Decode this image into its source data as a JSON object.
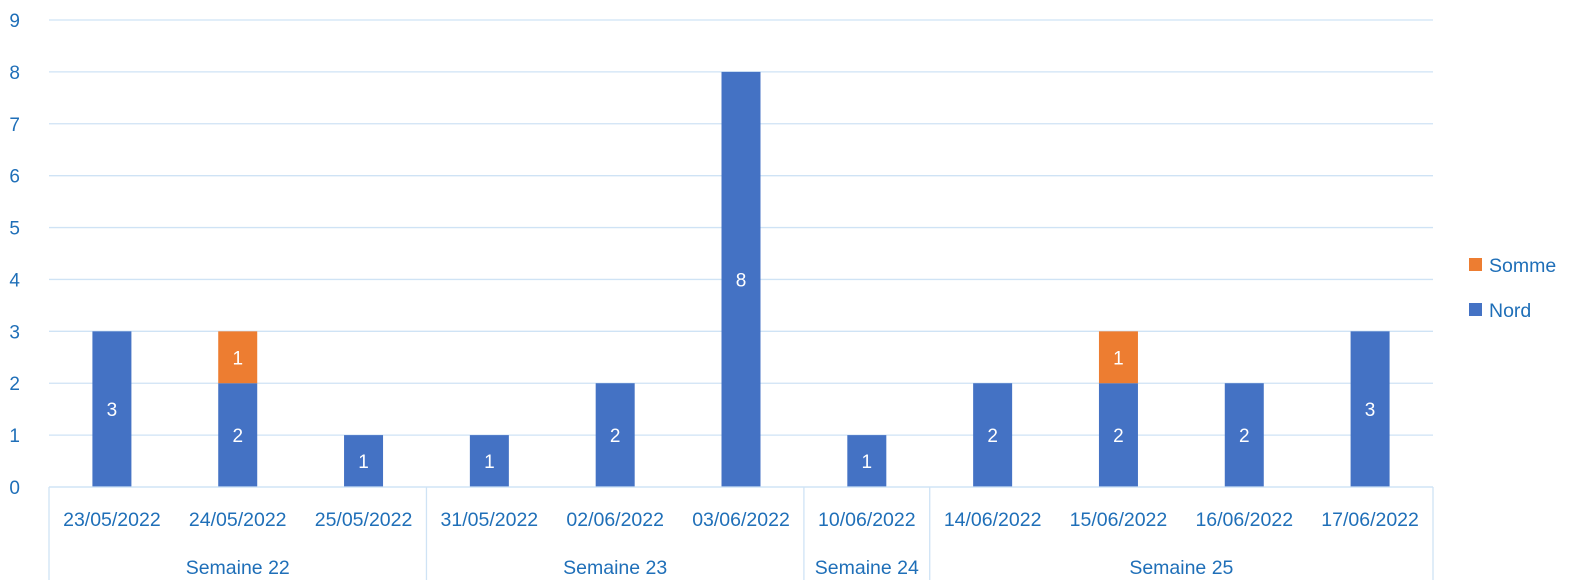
{
  "chart_data": {
    "type": "bar",
    "stacked": true,
    "categories": [
      "23/05/2022",
      "24/05/2022",
      "25/05/2022",
      "31/05/2022",
      "02/06/2022",
      "03/06/2022",
      "10/06/2022",
      "14/06/2022",
      "15/06/2022",
      "16/06/2022",
      "17/06/2022"
    ],
    "groups": [
      {
        "label": "Semaine 22",
        "count": 3
      },
      {
        "label": "Semaine 23",
        "count": 3
      },
      {
        "label": "Semaine 24",
        "count": 1
      },
      {
        "label": "Semaine 25",
        "count": 4
      }
    ],
    "series": [
      {
        "name": "Nord",
        "color": "#4472C4",
        "values": [
          3,
          2,
          1,
          1,
          2,
          8,
          1,
          2,
          2,
          2,
          3
        ]
      },
      {
        "name": "Somme",
        "color": "#ED7D31",
        "values": [
          0,
          1,
          0,
          0,
          0,
          0,
          0,
          0,
          1,
          0,
          0
        ]
      }
    ],
    "ylim": [
      0,
      9
    ],
    "yticks": [
      0,
      1,
      2,
      3,
      4,
      5,
      6,
      7,
      8,
      9
    ],
    "grid": true,
    "legend_position": "right",
    "legend_order": [
      "Somme",
      "Nord"
    ],
    "title": "",
    "xlabel": "",
    "ylabel": "",
    "text_color": "#1F6FB8",
    "grid_color": "#CFE3F5",
    "label_color": "#FFFFFF"
  }
}
